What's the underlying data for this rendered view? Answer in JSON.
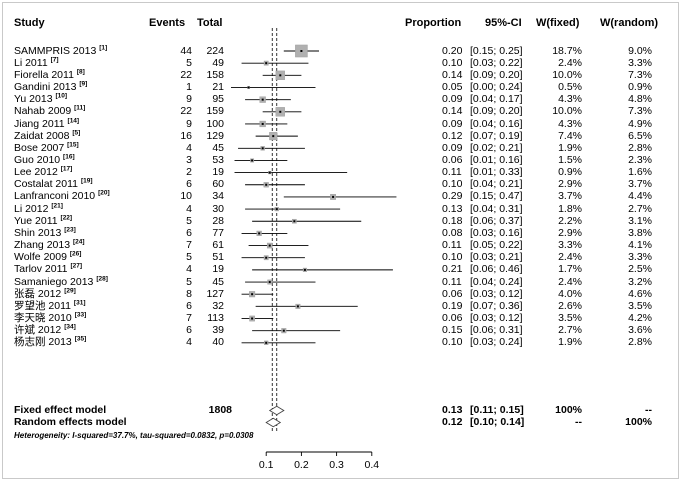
{
  "header": {
    "study": "Study",
    "events": "Events",
    "total": "Total",
    "proportion": "Proportion",
    "ci": "95%-CI",
    "w_fixed": "W(fixed)",
    "w_random": "W(random)"
  },
  "studies": [
    {
      "name": "SAMMPRIS 2013",
      "ref": "[1]",
      "events": "44",
      "total": "224",
      "prop": "0.20",
      "ci": "[0.15; 0.25]",
      "wf": "18.7%",
      "wr": "9.0%"
    },
    {
      "name": "Li 2011",
      "ref": "[7]",
      "events": "5",
      "total": "49",
      "prop": "0.10",
      "ci": "[0.03; 0.22]",
      "wf": "2.4%",
      "wr": "3.3%"
    },
    {
      "name": "Fiorella 2011",
      "ref": "[8]",
      "events": "22",
      "total": "158",
      "prop": "0.14",
      "ci": "[0.09; 0.20]",
      "wf": "10.0%",
      "wr": "7.3%"
    },
    {
      "name": "Gandini 2013",
      "ref": "[9]",
      "events": "1",
      "total": "21",
      "prop": "0.05",
      "ci": "[0.00; 0.24]",
      "wf": "0.5%",
      "wr": "0.9%"
    },
    {
      "name": "Yu 2013",
      "ref": "[10]",
      "events": "9",
      "total": "95",
      "prop": "0.09",
      "ci": "[0.04; 0.17]",
      "wf": "4.3%",
      "wr": "4.8%"
    },
    {
      "name": "Nahab 2009",
      "ref": "[11]",
      "events": "22",
      "total": "159",
      "prop": "0.14",
      "ci": "[0.09; 0.20]",
      "wf": "10.0%",
      "wr": "7.3%"
    },
    {
      "name": "Jiang 2011",
      "ref": "[14]",
      "events": "9",
      "total": "100",
      "prop": "0.09",
      "ci": "[0.04; 0.16]",
      "wf": "4.3%",
      "wr": "4.9%"
    },
    {
      "name": "Zaidat 2008",
      "ref": "[5]",
      "events": "16",
      "total": "129",
      "prop": "0.12",
      "ci": "[0.07; 0.19]",
      "wf": "7.4%",
      "wr": "6.5%"
    },
    {
      "name": "Bose 2007",
      "ref": "[15]",
      "events": "4",
      "total": "45",
      "prop": "0.09",
      "ci": "[0.02; 0.21]",
      "wf": "1.9%",
      "wr": "2.8%"
    },
    {
      "name": "Guo 2010",
      "ref": "[16]",
      "events": "3",
      "total": "53",
      "prop": "0.06",
      "ci": "[0.01; 0.16]",
      "wf": "1.5%",
      "wr": "2.3%"
    },
    {
      "name": "Lee 2012",
      "ref": "[17]",
      "events": "2",
      "total": "19",
      "prop": "0.11",
      "ci": "[0.01; 0.33]",
      "wf": "0.9%",
      "wr": "1.6%"
    },
    {
      "name": "Costalat 2011",
      "ref": "[19]",
      "events": "6",
      "total": "60",
      "prop": "0.10",
      "ci": "[0.04; 0.21]",
      "wf": "2.9%",
      "wr": "3.7%"
    },
    {
      "name": "Lanfranconi 2010",
      "ref": "[20]",
      "events": "10",
      "total": "34",
      "prop": "0.29",
      "ci": "[0.15; 0.47]",
      "wf": "3.7%",
      "wr": "4.4%"
    },
    {
      "name": "Li 2012",
      "ref": "[21]",
      "events": "4",
      "total": "30",
      "prop": "0.13",
      "ci": "[0.04; 0.31]",
      "wf": "1.8%",
      "wr": "2.7%"
    },
    {
      "name": "Yue 2011",
      "ref": "[22]",
      "events": "5",
      "total": "28",
      "prop": "0.18",
      "ci": "[0.06; 0.37]",
      "wf": "2.2%",
      "wr": "3.1%"
    },
    {
      "name": "Shin 2013",
      "ref": "[23]",
      "events": "6",
      "total": "77",
      "prop": "0.08",
      "ci": "[0.03; 0.16]",
      "wf": "2.9%",
      "wr": "3.8%"
    },
    {
      "name": "Zhang 2013",
      "ref": "[24]",
      "events": "7",
      "total": "61",
      "prop": "0.11",
      "ci": "[0.05; 0.22]",
      "wf": "3.3%",
      "wr": "4.1%"
    },
    {
      "name": "Wolfe 2009",
      "ref": "[26]",
      "events": "5",
      "total": "51",
      "prop": "0.10",
      "ci": "[0.03; 0.21]",
      "wf": "2.4%",
      "wr": "3.3%"
    },
    {
      "name": "Tarlov 2011",
      "ref": "[27]",
      "events": "4",
      "total": "19",
      "prop": "0.21",
      "ci": "[0.06; 0.46]",
      "wf": "1.7%",
      "wr": "2.5%"
    },
    {
      "name": "Samaniego 2013",
      "ref": "[28]",
      "events": "5",
      "total": "45",
      "prop": "0.11",
      "ci": "[0.04; 0.24]",
      "wf": "2.4%",
      "wr": "3.2%"
    },
    {
      "name": "张磊 2012",
      "ref": "[29]",
      "events": "8",
      "total": "127",
      "prop": "0.06",
      "ci": "[0.03; 0.12]",
      "wf": "4.0%",
      "wr": "4.6%"
    },
    {
      "name": "罗望池 2011",
      "ref": "[31]",
      "events": "6",
      "total": "32",
      "prop": "0.19",
      "ci": "[0.07; 0.36]",
      "wf": "2.6%",
      "wr": "3.5%"
    },
    {
      "name": "李天晓 2010",
      "ref": "[33]",
      "events": "7",
      "total": "113",
      "prop": "0.06",
      "ci": "[0.03; 0.12]",
      "wf": "3.5%",
      "wr": "4.2%"
    },
    {
      "name": "许斌 2012",
      "ref": "[34]",
      "events": "6",
      "total": "39",
      "prop": "0.15",
      "ci": "[0.06; 0.31]",
      "wf": "2.7%",
      "wr": "3.6%"
    },
    {
      "name": "杨志刚 2013",
      "ref": "[35]",
      "events": "4",
      "total": "40",
      "prop": "0.10",
      "ci": "[0.03; 0.24]",
      "wf": "1.9%",
      "wr": "2.8%"
    }
  ],
  "fixed": {
    "label": "Fixed effect model",
    "total": "1808",
    "prop": "0.13",
    "ci": "[0.11; 0.15]",
    "wf": "100%",
    "wr": "--"
  },
  "random": {
    "label": "Random effects model",
    "prop": "0.12",
    "ci": "[0.10; 0.14]",
    "wf": "--",
    "wr": "100%"
  },
  "heterogeneity": "Heterogeneity: I-squared=37.7%, tau-squared=0.0832, p=0.0308",
  "axis_ticks": [
    "0.1",
    "0.2",
    "0.3",
    "0.4"
  ],
  "chart_data": {
    "type": "forest",
    "x_range": [
      0,
      0.45
    ],
    "x_ticks": [
      0.1,
      0.2,
      0.3,
      0.4
    ],
    "fixed_effect": {
      "est": 0.13,
      "lo": 0.11,
      "hi": 0.15
    },
    "random_effect": {
      "est": 0.12,
      "lo": 0.1,
      "hi": 0.14
    },
    "points": [
      {
        "est": 0.2,
        "lo": 0.15,
        "hi": 0.25,
        "w": 18.7
      },
      {
        "est": 0.1,
        "lo": 0.03,
        "hi": 0.22,
        "w": 2.4
      },
      {
        "est": 0.14,
        "lo": 0.09,
        "hi": 0.2,
        "w": 10.0
      },
      {
        "est": 0.05,
        "lo": 0.0,
        "hi": 0.24,
        "w": 0.5
      },
      {
        "est": 0.09,
        "lo": 0.04,
        "hi": 0.17,
        "w": 4.3
      },
      {
        "est": 0.14,
        "lo": 0.09,
        "hi": 0.2,
        "w": 10.0
      },
      {
        "est": 0.09,
        "lo": 0.04,
        "hi": 0.16,
        "w": 4.3
      },
      {
        "est": 0.12,
        "lo": 0.07,
        "hi": 0.19,
        "w": 7.4
      },
      {
        "est": 0.09,
        "lo": 0.02,
        "hi": 0.21,
        "w": 1.9
      },
      {
        "est": 0.06,
        "lo": 0.01,
        "hi": 0.16,
        "w": 1.5
      },
      {
        "est": 0.11,
        "lo": 0.01,
        "hi": 0.33,
        "w": 0.9
      },
      {
        "est": 0.1,
        "lo": 0.04,
        "hi": 0.21,
        "w": 2.9
      },
      {
        "est": 0.29,
        "lo": 0.15,
        "hi": 0.47,
        "w": 3.7
      },
      {
        "est": 0.13,
        "lo": 0.04,
        "hi": 0.31,
        "w": 1.8
      },
      {
        "est": 0.18,
        "lo": 0.06,
        "hi": 0.37,
        "w": 2.2
      },
      {
        "est": 0.08,
        "lo": 0.03,
        "hi": 0.16,
        "w": 2.9
      },
      {
        "est": 0.11,
        "lo": 0.05,
        "hi": 0.22,
        "w": 3.3
      },
      {
        "est": 0.1,
        "lo": 0.03,
        "hi": 0.21,
        "w": 2.4
      },
      {
        "est": 0.21,
        "lo": 0.06,
        "hi": 0.46,
        "w": 1.7
      },
      {
        "est": 0.11,
        "lo": 0.04,
        "hi": 0.24,
        "w": 2.4
      },
      {
        "est": 0.06,
        "lo": 0.03,
        "hi": 0.12,
        "w": 4.0
      },
      {
        "est": 0.19,
        "lo": 0.07,
        "hi": 0.36,
        "w": 2.6
      },
      {
        "est": 0.06,
        "lo": 0.03,
        "hi": 0.12,
        "w": 3.5
      },
      {
        "est": 0.15,
        "lo": 0.06,
        "hi": 0.31,
        "w": 2.7
      },
      {
        "est": 0.1,
        "lo": 0.03,
        "hi": 0.24,
        "w": 1.9
      }
    ],
    "colors": {
      "box": "#b0b0b0",
      "line": "#000000",
      "diamond": "#ffffff"
    }
  }
}
